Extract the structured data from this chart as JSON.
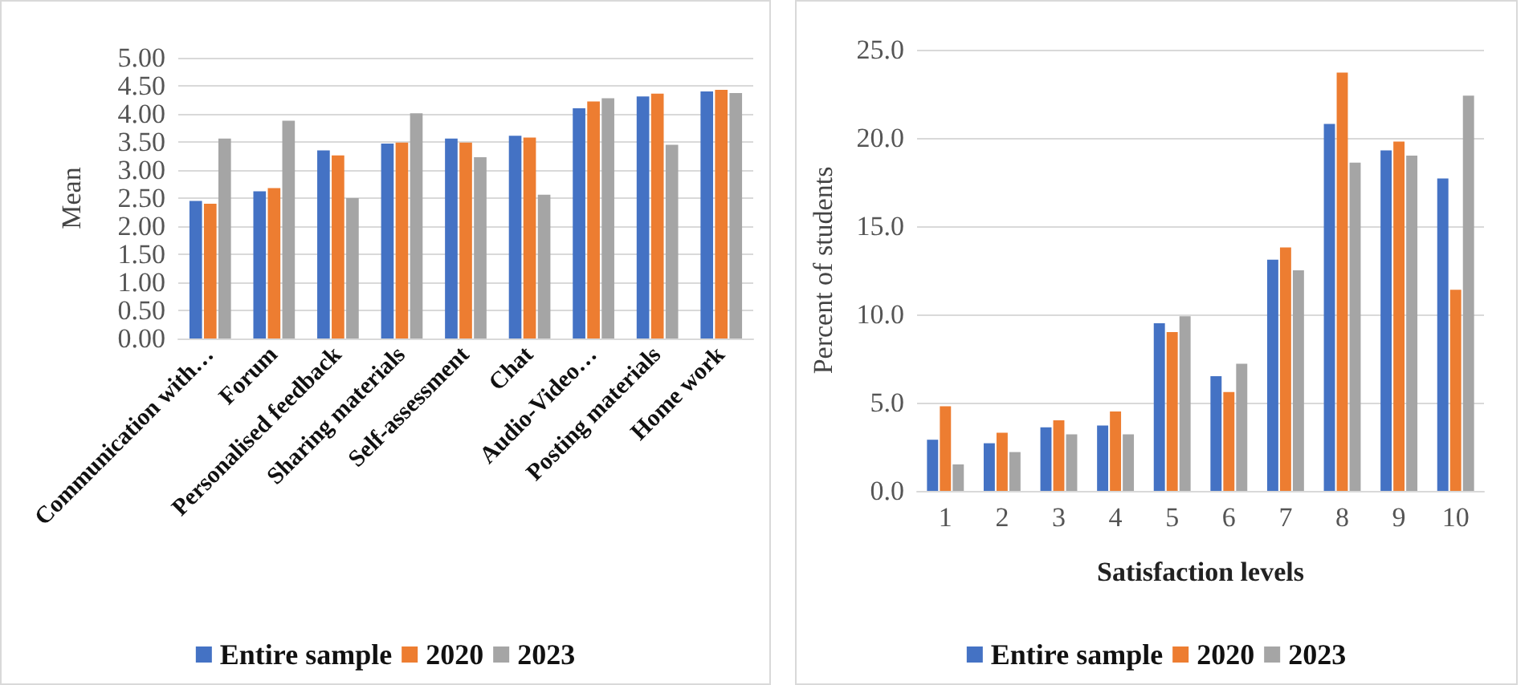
{
  "chart_data": [
    {
      "type": "bar",
      "ylabel": "Mean",
      "categories": [
        "Communication with…",
        "Forum",
        "Personalised feedback",
        "Sharing materials",
        "Self-assessment",
        "Chat",
        "Audio-Video…",
        "Posting materials",
        "Home work"
      ],
      "series": [
        {
          "name": "Entire sample",
          "color": "#4472c4",
          "values": [
            2.45,
            2.62,
            3.35,
            3.47,
            3.56,
            3.61,
            4.1,
            4.31,
            4.4
          ]
        },
        {
          "name": "2020",
          "color": "#ed7d31",
          "values": [
            2.4,
            2.68,
            3.26,
            3.49,
            3.49,
            3.58,
            4.22,
            4.36,
            4.43
          ]
        },
        {
          "name": "2023",
          "color": "#a5a5a5",
          "values": [
            3.56,
            3.88,
            2.5,
            4.01,
            3.23,
            2.56,
            4.28,
            3.45,
            4.37
          ]
        }
      ],
      "ylim": [
        0,
        5
      ],
      "yticks": [
        {
          "value": 0,
          "label": "0.00"
        },
        {
          "value": 0.5,
          "label": "0.50"
        },
        {
          "value": 1,
          "label": "1.00"
        },
        {
          "value": 1.5,
          "label": "1.50"
        },
        {
          "value": 2,
          "label": "2.00"
        },
        {
          "value": 2.5,
          "label": "2.50"
        },
        {
          "value": 3,
          "label": "3.00"
        },
        {
          "value": 3.5,
          "label": "3.50"
        },
        {
          "value": 4,
          "label": "4.00"
        },
        {
          "value": 4.5,
          "label": "4.50"
        },
        {
          "value": 5,
          "label": "5.00"
        }
      ],
      "grid": "y",
      "legend": "bottom"
    },
    {
      "type": "bar",
      "xlabel": "Satisfaction levels",
      "ylabel": "Percent of students",
      "categories": [
        "1",
        "2",
        "3",
        "4",
        "5",
        "6",
        "7",
        "8",
        "9",
        "10"
      ],
      "series": [
        {
          "name": "Entire sample",
          "color": "#4472c4",
          "values": [
            2.9,
            2.7,
            3.6,
            3.7,
            9.5,
            6.5,
            13.1,
            20.8,
            19.3,
            17.7
          ]
        },
        {
          "name": "2020",
          "color": "#ed7d31",
          "values": [
            4.8,
            3.3,
            4.0,
            4.5,
            9.0,
            5.6,
            13.8,
            23.7,
            19.8,
            11.4
          ]
        },
        {
          "name": "2023",
          "color": "#a5a5a5",
          "values": [
            1.5,
            2.2,
            3.2,
            3.2,
            9.9,
            7.2,
            12.5,
            18.6,
            19.0,
            22.4
          ]
        }
      ],
      "ylim": [
        0,
        25
      ],
      "yticks": [
        {
          "value": 0,
          "label": "0.0"
        },
        {
          "value": 5,
          "label": "5.0"
        },
        {
          "value": 10,
          "label": "10.0"
        },
        {
          "value": 15,
          "label": "15.0"
        },
        {
          "value": 20,
          "label": "20.0"
        },
        {
          "value": 25,
          "label": "25.0"
        }
      ],
      "grid": "y",
      "legend": "bottom"
    }
  ]
}
